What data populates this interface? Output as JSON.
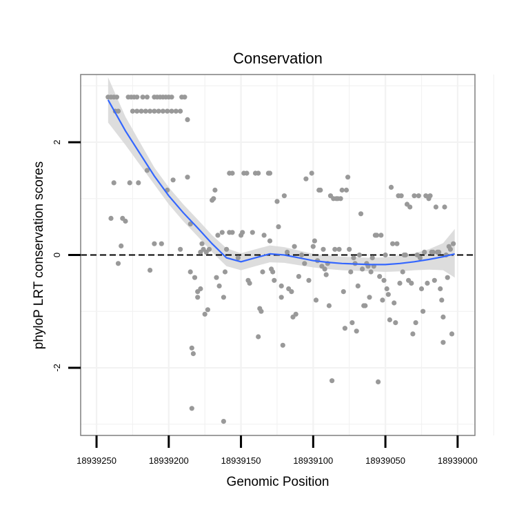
{
  "chart_data": {
    "type": "scatter",
    "title": "Conservation",
    "xlabel": "Genomic Position",
    "ylabel": "phyloP LRT conservation scores",
    "x_reversed": true,
    "xlim": [
      18939261,
      18938988
    ],
    "ylim": [
      -3.2,
      3.2
    ],
    "x_ticks": [
      18939250,
      18939200,
      18939150,
      18939100,
      18939050,
      18939000
    ],
    "x_tick_labels": [
      "18939250",
      "18939200",
      "18939150",
      "18939100",
      "18939050",
      "18939000"
    ],
    "y_ticks": [
      -2,
      0,
      2
    ],
    "y_tick_labels": [
      "-2",
      "0",
      "2"
    ],
    "grid": true,
    "reference_line": {
      "y": 0,
      "style": "dashed"
    },
    "colors": {
      "points": "#999999",
      "smooth_line": "#3366ff",
      "ribbon": "#d9d9d9",
      "panel_border": "#7f7f7f",
      "grid": "#f2f2f2"
    },
    "points": [
      {
        "x": 18939242,
        "y": 2.8
      },
      {
        "x": 18939240,
        "y": 2.8
      },
      {
        "x": 18939238,
        "y": 2.8
      },
      {
        "x": 18939236,
        "y": 2.8
      },
      {
        "x": 18939237,
        "y": 2.55
      },
      {
        "x": 18939235,
        "y": 2.55
      },
      {
        "x": 18939228,
        "y": 2.8
      },
      {
        "x": 18939226,
        "y": 2.8
      },
      {
        "x": 18939224,
        "y": 2.8
      },
      {
        "x": 18939222,
        "y": 2.8
      },
      {
        "x": 18939218,
        "y": 2.8
      },
      {
        "x": 18939215,
        "y": 2.8
      },
      {
        "x": 18939210,
        "y": 2.8
      },
      {
        "x": 18939208,
        "y": 2.8
      },
      {
        "x": 18939206,
        "y": 2.8
      },
      {
        "x": 18939204,
        "y": 2.8
      },
      {
        "x": 18939202,
        "y": 2.8
      },
      {
        "x": 18939200,
        "y": 2.8
      },
      {
        "x": 18939198,
        "y": 2.8
      },
      {
        "x": 18939191,
        "y": 2.8
      },
      {
        "x": 18939189,
        "y": 2.8
      },
      {
        "x": 18939225,
        "y": 2.55
      },
      {
        "x": 18939222,
        "y": 2.55
      },
      {
        "x": 18939219,
        "y": 2.55
      },
      {
        "x": 18939216,
        "y": 2.55
      },
      {
        "x": 18939213,
        "y": 2.55
      },
      {
        "x": 18939210,
        "y": 2.55
      },
      {
        "x": 18939207,
        "y": 2.55
      },
      {
        "x": 18939204,
        "y": 2.55
      },
      {
        "x": 18939201,
        "y": 2.55
      },
      {
        "x": 18939198,
        "y": 2.55
      },
      {
        "x": 18939195,
        "y": 2.55
      },
      {
        "x": 18939192,
        "y": 2.55
      },
      {
        "x": 18939187,
        "y": 2.4
      },
      {
        "x": 18939240,
        "y": 0.65
      },
      {
        "x": 18939238,
        "y": 1.28
      },
      {
        "x": 18939235,
        "y": -0.15
      },
      {
        "x": 18939233,
        "y": 0.16
      },
      {
        "x": 18939232,
        "y": 0.65
      },
      {
        "x": 18939230,
        "y": 0.6
      },
      {
        "x": 18939227,
        "y": 1.28
      },
      {
        "x": 18939221,
        "y": 1.28
      },
      {
        "x": 18939215,
        "y": 1.5
      },
      {
        "x": 18939213,
        "y": -0.27
      },
      {
        "x": 18939210,
        "y": 0.2
      },
      {
        "x": 18939205,
        "y": 0.2
      },
      {
        "x": 18939201,
        "y": 1.15
      },
      {
        "x": 18939197,
        "y": 1.33
      },
      {
        "x": 18939192,
        "y": 0.1
      },
      {
        "x": 18939187,
        "y": 1.38
      },
      {
        "x": 18939185,
        "y": 0.55
      },
      {
        "x": 18939185,
        "y": -0.3
      },
      {
        "x": 18939184,
        "y": -1.65
      },
      {
        "x": 18939183,
        "y": -1.75
      },
      {
        "x": 18939184,
        "y": -2.72
      },
      {
        "x": 18939182,
        "y": -0.4
      },
      {
        "x": 18939180,
        "y": -0.65
      },
      {
        "x": 18939180,
        "y": -0.75
      },
      {
        "x": 18939178,
        "y": -0.6
      },
      {
        "x": 18939178,
        "y": 0.05
      },
      {
        "x": 18939176,
        "y": 0.1
      },
      {
        "x": 18939177,
        "y": 0.2
      },
      {
        "x": 18939174,
        "y": 0.05
      },
      {
        "x": 18939172,
        "y": 0.1
      },
      {
        "x": 18939175,
        "y": -1.05
      },
      {
        "x": 18939173,
        "y": -0.97
      },
      {
        "x": 18939170,
        "y": 0.97
      },
      {
        "x": 18939169,
        "y": 1.0
      },
      {
        "x": 18939168,
        "y": 1.15
      },
      {
        "x": 18939167,
        "y": -0.4
      },
      {
        "x": 18939165,
        "y": -0.55
      },
      {
        "x": 18939166,
        "y": 0.35
      },
      {
        "x": 18939163,
        "y": 0.4
      },
      {
        "x": 18939162,
        "y": -0.75
      },
      {
        "x": 18939161,
        "y": -0.3
      },
      {
        "x": 18939160,
        "y": 0.1
      },
      {
        "x": 18939162,
        "y": -2.95
      },
      {
        "x": 18939158,
        "y": 1.45
      },
      {
        "x": 18939156,
        "y": 1.45
      },
      {
        "x": 18939158,
        "y": 0.4
      },
      {
        "x": 18939156,
        "y": 0.4
      },
      {
        "x": 18939152,
        "y": -0.05
      },
      {
        "x": 18939150,
        "y": 0.35
      },
      {
        "x": 18939149,
        "y": 0.4
      },
      {
        "x": 18939148,
        "y": 1.45
      },
      {
        "x": 18939146,
        "y": 1.45
      },
      {
        "x": 18939145,
        "y": -0.45
      },
      {
        "x": 18939144,
        "y": -0.5
      },
      {
        "x": 18939142,
        "y": 0.4
      },
      {
        "x": 18939140,
        "y": 1.45
      },
      {
        "x": 18939138,
        "y": 1.45
      },
      {
        "x": 18939138,
        "y": -1.45
      },
      {
        "x": 18939137,
        "y": -0.95
      },
      {
        "x": 18939136,
        "y": -1.0
      },
      {
        "x": 18939135,
        "y": -0.3
      },
      {
        "x": 18939134,
        "y": 0.35
      },
      {
        "x": 18939131,
        "y": 1.45
      },
      {
        "x": 18939130,
        "y": 1.45
      },
      {
        "x": 18939130,
        "y": 0.25
      },
      {
        "x": 18939129,
        "y": -0.25
      },
      {
        "x": 18939128,
        "y": -0.3
      },
      {
        "x": 18939127,
        "y": -0.45
      },
      {
        "x": 18939125,
        "y": 0.95
      },
      {
        "x": 18939124,
        "y": 0.5
      },
      {
        "x": 18939122,
        "y": -0.55
      },
      {
        "x": 18939122,
        "y": -0.75
      },
      {
        "x": 18939121,
        "y": -1.6
      },
      {
        "x": 18939120,
        "y": 1.05
      },
      {
        "x": 18939118,
        "y": 0.05
      },
      {
        "x": 18939117,
        "y": -0.6
      },
      {
        "x": 18939115,
        "y": -0.65
      },
      {
        "x": 18939114,
        "y": -1.1
      },
      {
        "x": 18939113,
        "y": 0.15
      },
      {
        "x": 18939112,
        "y": -1.05
      },
      {
        "x": 18939110,
        "y": -0.38
      },
      {
        "x": 18939108,
        "y": 0.0
      },
      {
        "x": 18939106,
        "y": -0.15
      },
      {
        "x": 18939105,
        "y": 1.35
      },
      {
        "x": 18939103,
        "y": -0.45
      },
      {
        "x": 18939101,
        "y": 1.45
      },
      {
        "x": 18939100,
        "y": 0.15
      },
      {
        "x": 18939099,
        "y": 0.25
      },
      {
        "x": 18939098,
        "y": -0.8
      },
      {
        "x": 18939097,
        "y": -0.1
      },
      {
        "x": 18939096,
        "y": 1.15
      },
      {
        "x": 18939095,
        "y": 1.15
      },
      {
        "x": 18939094,
        "y": -0.2
      },
      {
        "x": 18939093,
        "y": 0.1
      },
      {
        "x": 18939092,
        "y": -0.25
      },
      {
        "x": 18939091,
        "y": -0.35
      },
      {
        "x": 18939090,
        "y": -0.15
      },
      {
        "x": 18939089,
        "y": -0.9
      },
      {
        "x": 18939088,
        "y": 1.05
      },
      {
        "x": 18939087,
        "y": -2.23
      },
      {
        "x": 18939086,
        "y": 1.0
      },
      {
        "x": 18939085,
        "y": 0.1
      },
      {
        "x": 18939084,
        "y": 1.0
      },
      {
        "x": 18939083,
        "y": 1.0
      },
      {
        "x": 18939082,
        "y": 0.1
      },
      {
        "x": 18939081,
        "y": 1.0
      },
      {
        "x": 18939080,
        "y": 1.15
      },
      {
        "x": 18939079,
        "y": -0.65
      },
      {
        "x": 18939078,
        "y": -1.3
      },
      {
        "x": 18939077,
        "y": 1.15
      },
      {
        "x": 18939076,
        "y": 1.38
      },
      {
        "x": 18939075,
        "y": 0.1
      },
      {
        "x": 18939074,
        "y": -0.3
      },
      {
        "x": 18939073,
        "y": -1.2
      },
      {
        "x": 18939072,
        "y": -0.05
      },
      {
        "x": 18939071,
        "y": -0.15
      },
      {
        "x": 18939070,
        "y": -1.35
      },
      {
        "x": 18939069,
        "y": -0.55
      },
      {
        "x": 18939068,
        "y": 0.0
      },
      {
        "x": 18939067,
        "y": 0.73
      },
      {
        "x": 18939066,
        "y": -0.25
      },
      {
        "x": 18939065,
        "y": -0.9
      },
      {
        "x": 18939064,
        "y": -0.9
      },
      {
        "x": 18939063,
        "y": -0.15
      },
      {
        "x": 18939062,
        "y": -0.2
      },
      {
        "x": 18939061,
        "y": -0.75
      },
      {
        "x": 18939060,
        "y": -0.3
      },
      {
        "x": 18939059,
        "y": -0.05
      },
      {
        "x": 18939058,
        "y": -0.2
      },
      {
        "x": 18939057,
        "y": 0.35
      },
      {
        "x": 18939056,
        "y": 0.35
      },
      {
        "x": 18939055,
        "y": -2.25
      },
      {
        "x": 18939054,
        "y": -0.38
      },
      {
        "x": 18939053,
        "y": 0.35
      },
      {
        "x": 18939052,
        "y": -0.8
      },
      {
        "x": 18939051,
        "y": -0.45
      },
      {
        "x": 18939050,
        "y": 0.0
      },
      {
        "x": 18939049,
        "y": -0.6
      },
      {
        "x": 18939048,
        "y": -0.7
      },
      {
        "x": 18939047,
        "y": -1.15
      },
      {
        "x": 18939046,
        "y": 1.2
      },
      {
        "x": 18939045,
        "y": 0.2
      },
      {
        "x": 18939044,
        "y": -0.85
      },
      {
        "x": 18939043,
        "y": -1.2
      },
      {
        "x": 18939042,
        "y": 0.2
      },
      {
        "x": 18939041,
        "y": 1.05
      },
      {
        "x": 18939040,
        "y": -0.5
      },
      {
        "x": 18939039,
        "y": 1.05
      },
      {
        "x": 18939038,
        "y": -0.3
      },
      {
        "x": 18939037,
        "y": 0.0
      },
      {
        "x": 18939036,
        "y": 0.0
      },
      {
        "x": 18939035,
        "y": 0.9
      },
      {
        "x": 18939034,
        "y": -0.45
      },
      {
        "x": 18939033,
        "y": 0.85
      },
      {
        "x": 18939032,
        "y": -0.5
      },
      {
        "x": 18939031,
        "y": -1.4
      },
      {
        "x": 18939030,
        "y": 1.05
      },
      {
        "x": 18939029,
        "y": -1.2
      },
      {
        "x": 18939028,
        "y": 0.0
      },
      {
        "x": 18939027,
        "y": 1.05
      },
      {
        "x": 18939026,
        "y": -0.05
      },
      {
        "x": 18939025,
        "y": -0.6
      },
      {
        "x": 18939024,
        "y": -1.0
      },
      {
        "x": 18939023,
        "y": 0.05
      },
      {
        "x": 18939022,
        "y": 1.05
      },
      {
        "x": 18939021,
        "y": -0.5
      },
      {
        "x": 18939020,
        "y": 1.0
      },
      {
        "x": 18939019,
        "y": 1.05
      },
      {
        "x": 18939018,
        "y": 0.05
      },
      {
        "x": 18939017,
        "y": 0.05
      },
      {
        "x": 18939016,
        "y": -0.45
      },
      {
        "x": 18939015,
        "y": 0.85
      },
      {
        "x": 18939014,
        "y": 0.05
      },
      {
        "x": 18939013,
        "y": 0.05
      },
      {
        "x": 18939012,
        "y": -0.6
      },
      {
        "x": 18939011,
        "y": -0.8
      },
      {
        "x": 18939010,
        "y": -1.1
      },
      {
        "x": 18939009,
        "y": 0.85
      },
      {
        "x": 18939008,
        "y": 0.0
      },
      {
        "x": 18939007,
        "y": -0.4
      },
      {
        "x": 18939006,
        "y": 0.15
      },
      {
        "x": 18939005,
        "y": 0.1
      },
      {
        "x": 18939004,
        "y": -1.4
      },
      {
        "x": 18939003,
        "y": 0.2
      },
      {
        "x": 18939010,
        "y": -1.55
      }
    ],
    "smooth": [
      {
        "x": 18939242,
        "y": 2.75,
        "lo": 2.35,
        "hi": 3.15
      },
      {
        "x": 18939230,
        "y": 2.2,
        "lo": 1.95,
        "hi": 2.45
      },
      {
        "x": 18939220,
        "y": 1.8,
        "lo": 1.6,
        "hi": 2.0
      },
      {
        "x": 18939210,
        "y": 1.4,
        "lo": 1.25,
        "hi": 1.55
      },
      {
        "x": 18939200,
        "y": 1.05,
        "lo": 0.9,
        "hi": 1.2
      },
      {
        "x": 18939190,
        "y": 0.75,
        "lo": 0.6,
        "hi": 0.9
      },
      {
        "x": 18939180,
        "y": 0.48,
        "lo": 0.33,
        "hi": 0.63
      },
      {
        "x": 18939170,
        "y": 0.2,
        "lo": 0.05,
        "hi": 0.35
      },
      {
        "x": 18939160,
        "y": -0.05,
        "lo": -0.2,
        "hi": 0.12
      },
      {
        "x": 18939150,
        "y": -0.12,
        "lo": -0.27,
        "hi": 0.03
      },
      {
        "x": 18939140,
        "y": -0.05,
        "lo": -0.2,
        "hi": 0.1
      },
      {
        "x": 18939130,
        "y": 0.02,
        "lo": -0.13,
        "hi": 0.17
      },
      {
        "x": 18939120,
        "y": 0.0,
        "lo": -0.14,
        "hi": 0.14
      },
      {
        "x": 18939110,
        "y": -0.05,
        "lo": -0.18,
        "hi": 0.08
      },
      {
        "x": 18939100,
        "y": -0.1,
        "lo": -0.22,
        "hi": 0.02
      },
      {
        "x": 18939090,
        "y": -0.13,
        "lo": -0.25,
        "hi": -0.01
      },
      {
        "x": 18939080,
        "y": -0.15,
        "lo": -0.27,
        "hi": -0.03
      },
      {
        "x": 18939070,
        "y": -0.16,
        "lo": -0.28,
        "hi": -0.04
      },
      {
        "x": 18939060,
        "y": -0.17,
        "lo": -0.29,
        "hi": -0.05
      },
      {
        "x": 18939050,
        "y": -0.17,
        "lo": -0.3,
        "hi": -0.04
      },
      {
        "x": 18939040,
        "y": -0.15,
        "lo": -0.29,
        "hi": -0.01
      },
      {
        "x": 18939030,
        "y": -0.12,
        "lo": -0.27,
        "hi": 0.03
      },
      {
        "x": 18939020,
        "y": -0.08,
        "lo": -0.26,
        "hi": 0.1
      },
      {
        "x": 18939010,
        "y": -0.03,
        "lo": -0.27,
        "hi": 0.21
      },
      {
        "x": 18939002,
        "y": 0.02,
        "lo": -0.4,
        "hi": 0.46
      }
    ]
  }
}
